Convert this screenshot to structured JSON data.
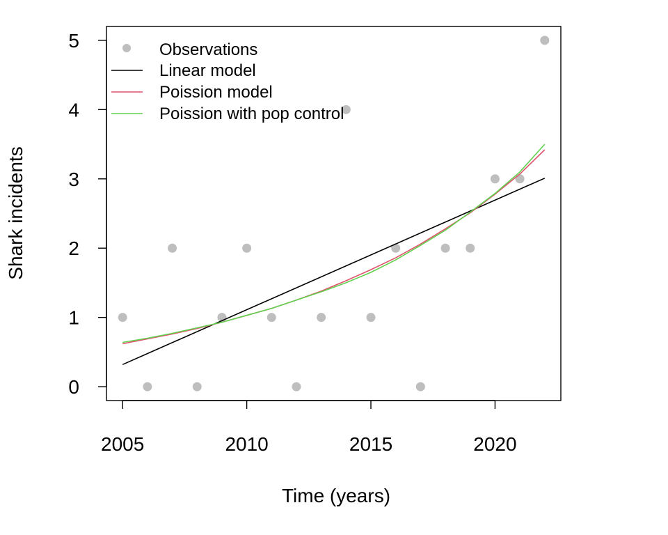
{
  "chart_data": {
    "type": "scatter",
    "title": "",
    "xlabel": "Time (years)",
    "ylabel": "Shark incidents",
    "xlim": [
      2004.35,
      2022.65
    ],
    "ylim": [
      -0.2,
      5.2
    ],
    "xticks": [
      2005,
      2010,
      2015,
      2020
    ],
    "yticks": [
      0,
      1,
      2,
      3,
      4,
      5
    ],
    "grid": false,
    "legend_position": "top-left",
    "observations": {
      "name": "Observations",
      "color": "#bebebe",
      "x": [
        2005,
        2006,
        2007,
        2008,
        2009,
        2010,
        2011,
        2012,
        2013,
        2014,
        2015,
        2016,
        2017,
        2018,
        2019,
        2020,
        2021,
        2022
      ],
      "y": [
        1,
        0,
        2,
        0,
        1,
        2,
        1,
        0,
        1,
        4,
        1,
        2,
        0,
        2,
        2,
        3,
        3,
        5
      ]
    },
    "series": [
      {
        "name": "Linear model",
        "color": "#000000",
        "x": [
          2005,
          2022
        ],
        "y": [
          0.32,
          3.01
        ]
      },
      {
        "name": "Poission model",
        "color": "#df536b",
        "x": [
          2005,
          2006,
          2007,
          2008,
          2009,
          2010,
          2011,
          2012,
          2013,
          2014,
          2015,
          2016,
          2017,
          2018,
          2019,
          2020,
          2021,
          2022
        ],
        "y": [
          0.62,
          0.69,
          0.76,
          0.84,
          0.93,
          1.03,
          1.13,
          1.25,
          1.38,
          1.53,
          1.69,
          1.86,
          2.06,
          2.28,
          2.51,
          2.78,
          3.07,
          3.42
        ]
      },
      {
        "name": "Poission with pop control",
        "color": "#61d04f",
        "x": [
          2005,
          2006,
          2007,
          2008,
          2009,
          2010,
          2011,
          2012,
          2013,
          2014,
          2015,
          2016,
          2017,
          2018,
          2019,
          2020,
          2021,
          2022
        ],
        "y": [
          0.64,
          0.7,
          0.77,
          0.85,
          0.93,
          1.03,
          1.13,
          1.25,
          1.37,
          1.5,
          1.65,
          1.83,
          2.04,
          2.26,
          2.52,
          2.79,
          3.1,
          3.5
        ]
      }
    ]
  }
}
